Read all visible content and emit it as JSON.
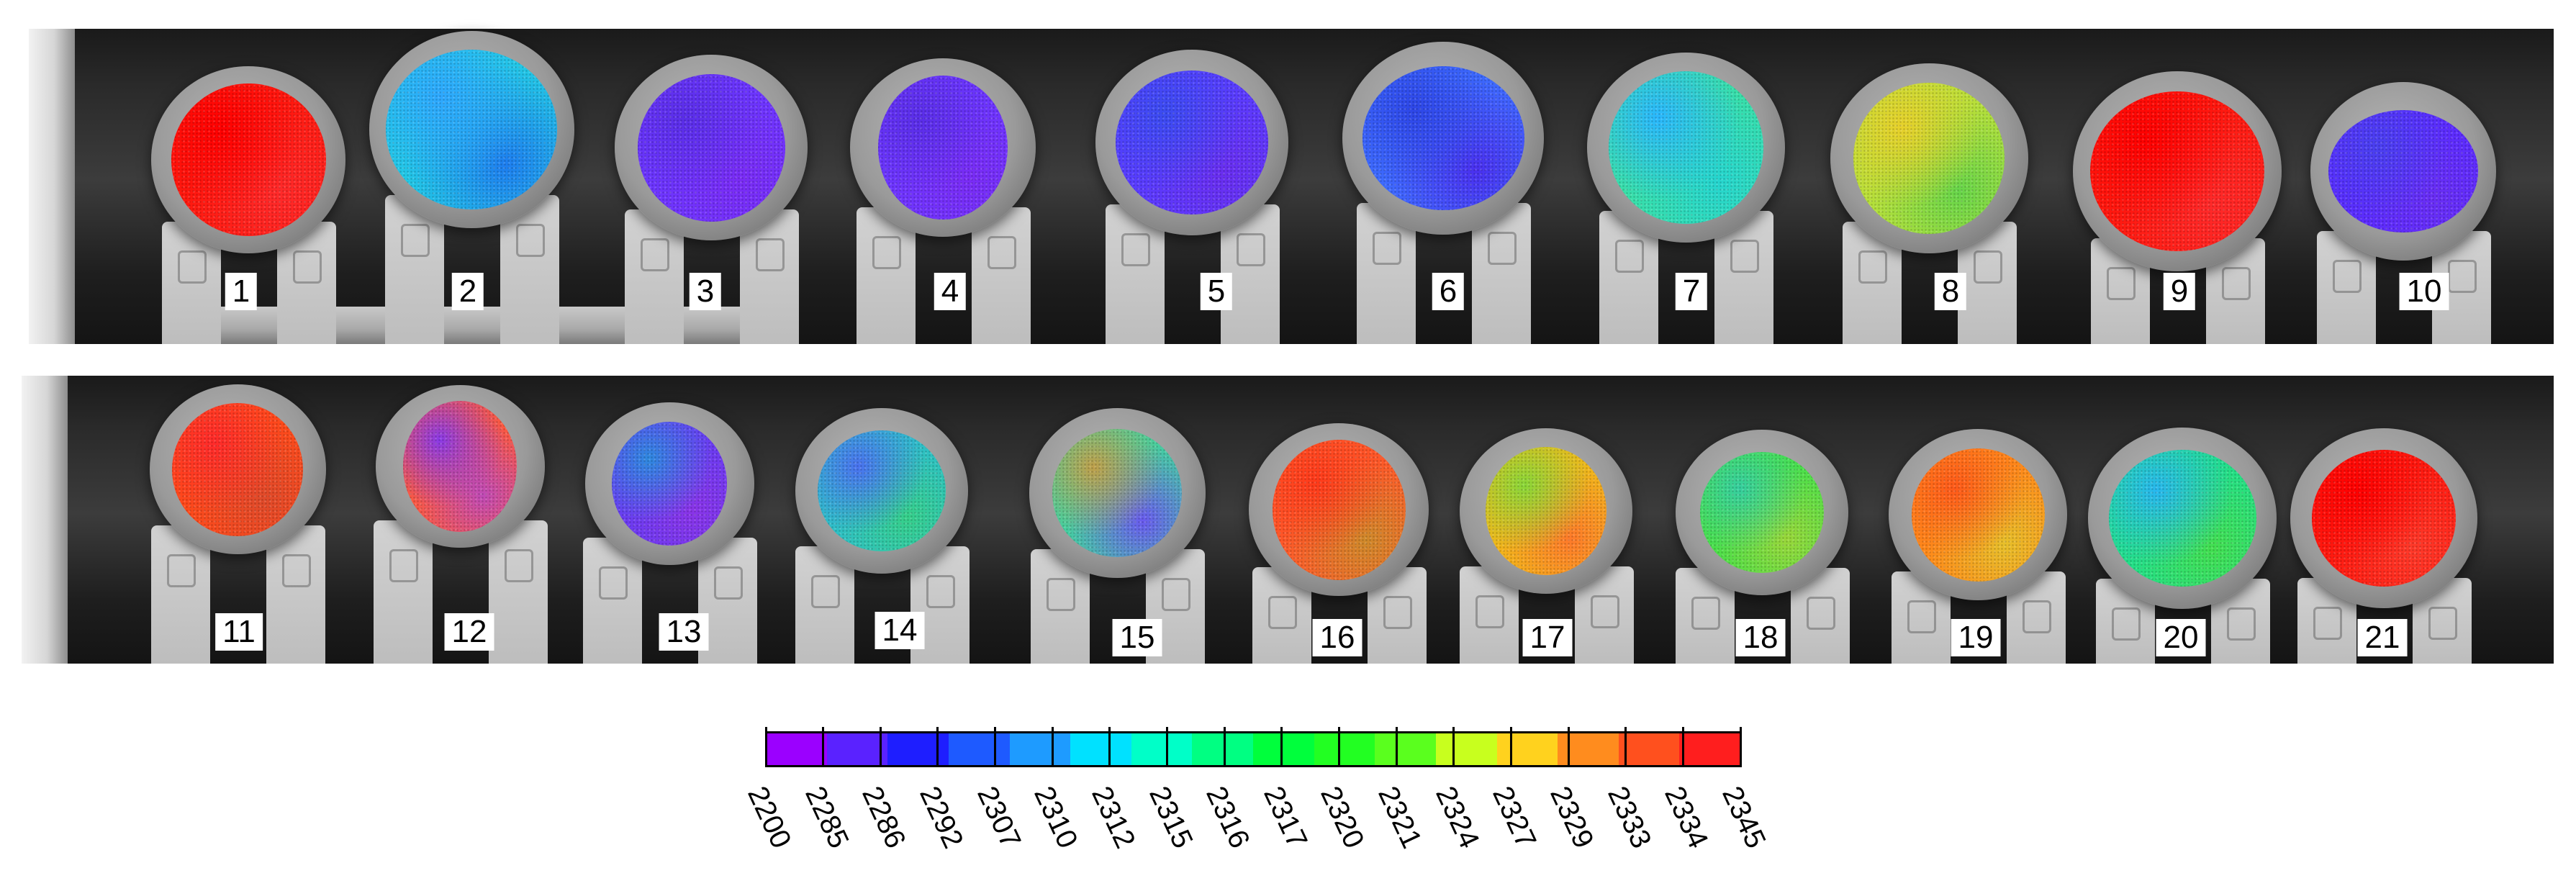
{
  "samples": [
    {
      "label": "1",
      "colors": [
        "#ff1a10",
        "#ff0000",
        "#ff2a2a"
      ]
    },
    {
      "label": "2",
      "colors": [
        "#22c9e6",
        "#2ea8ff",
        "#1e7ef0"
      ]
    },
    {
      "label": "3",
      "colors": [
        "#6d36ff",
        "#5a2ee8",
        "#7a2cf5"
      ]
    },
    {
      "label": "4",
      "colors": [
        "#6d36ff",
        "#5a2ee8",
        "#7a2cf5"
      ]
    },
    {
      "label": "5",
      "colors": [
        "#5a3cff",
        "#3b4cf2",
        "#6a2ef0"
      ]
    },
    {
      "label": "6",
      "colors": [
        "#3e6cff",
        "#2d46e8",
        "#4a30f0"
      ]
    },
    {
      "label": "7",
      "colors": [
        "#39e0a8",
        "#2ab8ff",
        "#26d6d0"
      ]
    },
    {
      "label": "8",
      "colors": [
        "#b7e03a",
        "#e8d12a",
        "#67d64a"
      ]
    },
    {
      "label": "9",
      "colors": [
        "#ff1a10",
        "#ff0000",
        "#ff2a2a"
      ]
    },
    {
      "label": "10",
      "colors": [
        "#5a2cff",
        "#4a40f0",
        "#6a2ef5"
      ]
    },
    {
      "label": "11",
      "colors": [
        "#ff4a1a",
        "#ff2a2a",
        "#e04a2a"
      ]
    },
    {
      "label": "12",
      "colors": [
        "#ff5a3a",
        "#8a3ae8",
        "#c04ab8"
      ]
    },
    {
      "label": "13",
      "colors": [
        "#6a3cf2",
        "#2e8ae0",
        "#8a34e8"
      ]
    },
    {
      "label": "14",
      "colors": [
        "#2ec0c8",
        "#4a72f0",
        "#36d08a"
      ]
    },
    {
      "label": "15",
      "colors": [
        "#44d0a0",
        "#c0a04a",
        "#6a5af0"
      ]
    },
    {
      "label": "16",
      "colors": [
        "#ff5a2a",
        "#ff3a1a",
        "#d08a2a"
      ]
    },
    {
      "label": "17",
      "colors": [
        "#f2b81a",
        "#8ad838",
        "#ff7a2a"
      ]
    },
    {
      "label": "18",
      "colors": [
        "#4ae04a",
        "#36d0a0",
        "#9ad83a"
      ]
    },
    {
      "label": "19",
      "colors": [
        "#ff8a1a",
        "#ff5a1a",
        "#e8c02a"
      ]
    },
    {
      "label": "20",
      "colors": [
        "#22e08a",
        "#28b8f0",
        "#44e050"
      ]
    },
    {
      "label": "21",
      "colors": [
        "#ff1a10",
        "#ff0000",
        "#ff3a2a"
      ]
    }
  ],
  "colorbar": {
    "colors": [
      "#9b00ff",
      "#5a22ff",
      "#1e1eff",
      "#1e5aff",
      "#1e9bff",
      "#00e1ff",
      "#00ffc8",
      "#00ff82",
      "#00ff3c",
      "#22ff22",
      "#5aff1e",
      "#c8ff1e",
      "#ffd21e",
      "#ff8c1e",
      "#ff501e",
      "#ff1e1e"
    ],
    "ticks": [
      "2200",
      "2285",
      "2286",
      "2292",
      "2307",
      "2310",
      "2312",
      "2315",
      "2316",
      "2317",
      "2320",
      "2321",
      "2324",
      "2327",
      "2329",
      "2333",
      "2334",
      "2345"
    ]
  }
}
